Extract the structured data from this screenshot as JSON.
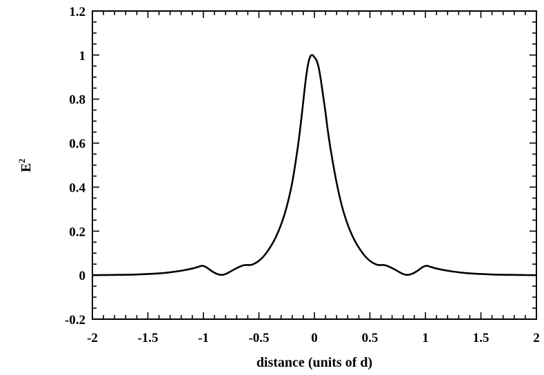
{
  "chart_data": {
    "type": "line",
    "title": "",
    "xlabel": "distance (units of d)",
    "ylabel": "E",
    "ylabel_superscript": "2",
    "xlim": [
      -2,
      2
    ],
    "ylim": [
      -0.2,
      1.2
    ],
    "xticks": [
      "-2",
      "-1.5",
      "-1",
      "-0.5",
      "0",
      "0.5",
      "1",
      "1.5",
      "2"
    ],
    "yticks": [
      "-0.2",
      "0",
      "0.2",
      "0.4",
      "0.6",
      "0.8",
      "1",
      "1.2"
    ],
    "grid": false,
    "legend": "none",
    "series": [
      {
        "x": [
          -2.0,
          -1.8,
          -1.6,
          -1.4,
          -1.3,
          -1.2,
          -1.1,
          -1.05,
          -1.02,
          -1.0,
          -0.97,
          -0.93,
          -0.88,
          -0.84,
          -0.8,
          -0.75,
          -0.7,
          -0.65,
          -0.62,
          -0.58,
          -0.55,
          -0.5,
          -0.45,
          -0.4,
          -0.35,
          -0.3,
          -0.25,
          -0.2,
          -0.15,
          -0.12,
          -0.1,
          -0.08,
          -0.06,
          -0.04,
          -0.02,
          0.0,
          0.02,
          0.04,
          0.06,
          0.08,
          0.1,
          0.12,
          0.15,
          0.2,
          0.25,
          0.3,
          0.35,
          0.4,
          0.45,
          0.5,
          0.55,
          0.58,
          0.62,
          0.65,
          0.7,
          0.75,
          0.8,
          0.84,
          0.88,
          0.93,
          0.97,
          1.0,
          1.02,
          1.05,
          1.1,
          1.2,
          1.3,
          1.4,
          1.6,
          1.8,
          2.0
        ],
        "y": [
          0.0,
          0.001,
          0.003,
          0.008,
          0.013,
          0.02,
          0.03,
          0.037,
          0.042,
          0.042,
          0.035,
          0.02,
          0.006,
          0.001,
          0.005,
          0.018,
          0.032,
          0.043,
          0.046,
          0.046,
          0.05,
          0.065,
          0.09,
          0.125,
          0.17,
          0.23,
          0.31,
          0.42,
          0.58,
          0.7,
          0.79,
          0.88,
          0.95,
          0.99,
          1.0,
          0.99,
          0.975,
          0.94,
          0.88,
          0.81,
          0.74,
          0.66,
          0.56,
          0.42,
          0.31,
          0.23,
          0.17,
          0.125,
          0.09,
          0.065,
          0.05,
          0.046,
          0.046,
          0.043,
          0.032,
          0.018,
          0.005,
          0.001,
          0.006,
          0.02,
          0.035,
          0.042,
          0.042,
          0.037,
          0.03,
          0.02,
          0.013,
          0.008,
          0.003,
          0.001,
          0.0
        ]
      }
    ]
  }
}
